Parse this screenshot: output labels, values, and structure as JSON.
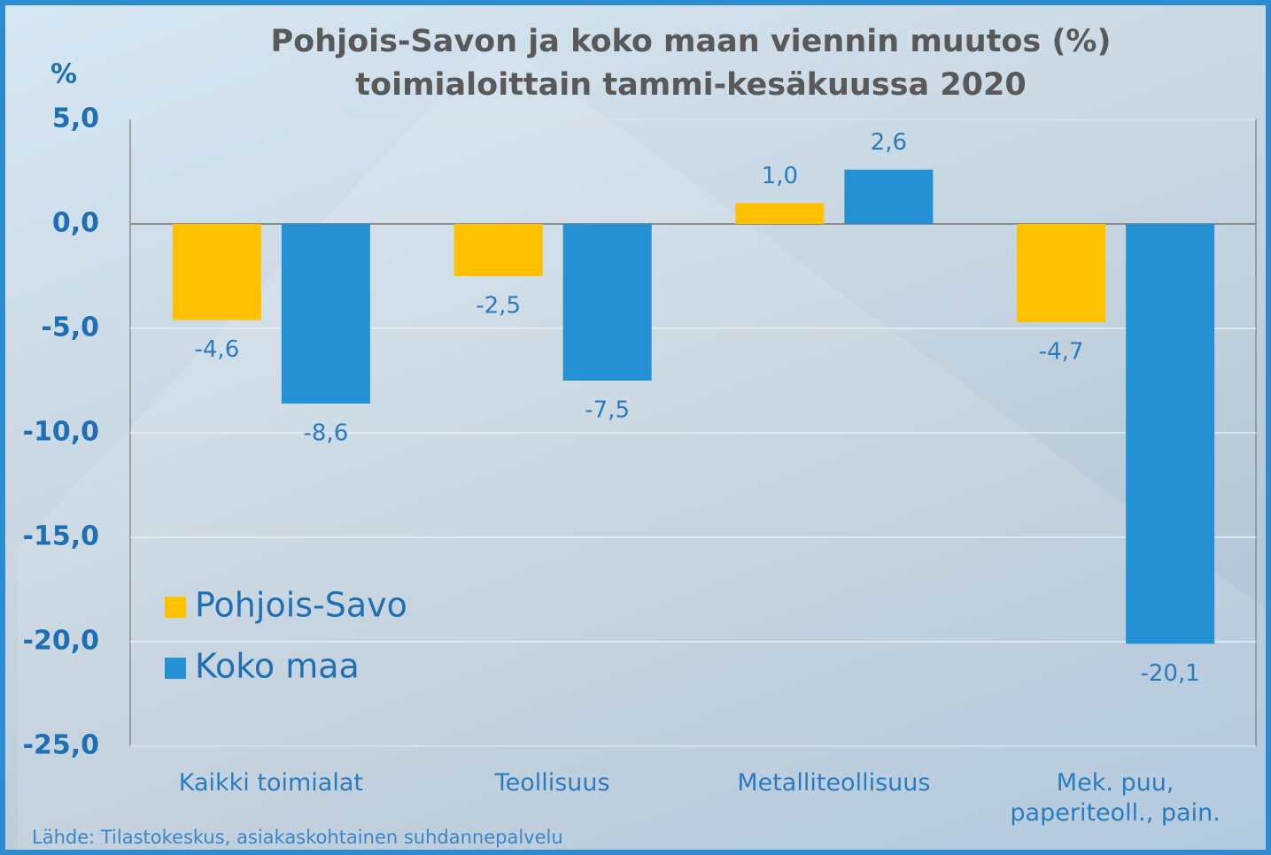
{
  "chart_data": {
    "type": "bar",
    "title": "Pohjois-Savon ja koko maan viennin muutos (%)",
    "subtitle": "toimialoittain tammi-kesäkuussa 2020",
    "y_label": "%",
    "source": "Lähde: Tilastokeskus, asiakaskohtainen suhdannepalvelu",
    "categories": [
      "Kaikki toimialat",
      "Teollisuus",
      "Metalliteollisuus",
      "Mek. puu, paperiteoll., pain."
    ],
    "series": [
      {
        "name": "Pohjois-Savo",
        "color": "#ffc000",
        "values": [
          -4.6,
          -2.5,
          1.0,
          -4.7
        ],
        "value_labels": [
          "-4,6",
          "-2,5",
          "1,0",
          "-4,7"
        ]
      },
      {
        "name": "Koko maa",
        "color": "#2591d5",
        "values": [
          -8.6,
          -7.5,
          2.6,
          -20.1
        ],
        "value_labels": [
          "-8,6",
          "-7,5",
          "2,6",
          "-20,1"
        ]
      }
    ],
    "ylim": [
      -25,
      5
    ],
    "yticks": [
      {
        "value": 5,
        "label": "5,0"
      },
      {
        "value": 0,
        "label": "0,0"
      },
      {
        "value": -5,
        "label": "-5,0"
      },
      {
        "value": -10,
        "label": "-10,0"
      },
      {
        "value": -15,
        "label": "-15,0"
      },
      {
        "value": -20,
        "label": "-20,0"
      },
      {
        "value": -25,
        "label": "-25,0"
      }
    ],
    "grid": true,
    "legend": "lower left"
  }
}
